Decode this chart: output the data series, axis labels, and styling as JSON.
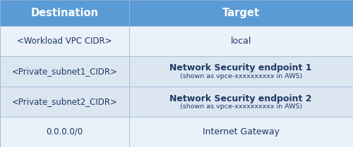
{
  "header": [
    "Destination",
    "Target"
  ],
  "rows": [
    {
      "dest": "<Workload VPC CIDR>",
      "target": "local",
      "subtitle": ""
    },
    {
      "dest": "<Private_subnet1_CIDR>",
      "target": "Network Security endpoint 1",
      "subtitle": "(shown as vpce-xxxxxxxxxx in AWS)"
    },
    {
      "dest": "<Private_subnet2_CIDR>",
      "target": "Network Security endpoint 2",
      "subtitle": "(shown as vpce-xxxxxxxxxx in AWS)"
    },
    {
      "dest": "0.0.0.0/0",
      "target": "Internet Gateway",
      "subtitle": ""
    }
  ],
  "header_bg": "#5b9bd5",
  "row_bg_light": "#dce6f1",
  "row_bg_lighter": "#e9f1f9",
  "header_text_color": "#ffffff",
  "row_text_color": "#1f3864",
  "border_color": "#9ab7d3",
  "col_split": 0.365,
  "header_fontsize": 10.5,
  "dest_fontsize": 8.5,
  "target_fontsize": 9.0,
  "subtitle_fontsize": 6.8,
  "figsize": [
    5.0,
    2.09
  ],
  "dpi": 100
}
